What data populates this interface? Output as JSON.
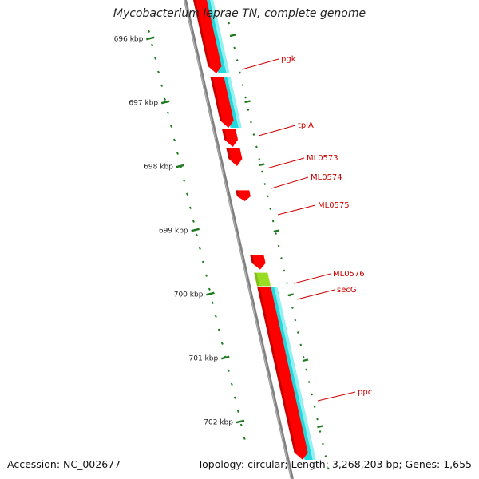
{
  "title": "Mycobacterium leprae TN, complete genome",
  "footer": {
    "accession": "Accession: NC_002677",
    "summary": "Topology: circular; Length: 3,268,203 bp; Genes: 1,655"
  },
  "colors": {
    "gene_fill": "#ff0000",
    "gene_shade": "#b00000",
    "gene_highlight": "#ff7070",
    "cds_track": "#22d8dc",
    "cds_track_light": "#a6f4f4",
    "special_gene": "#99dd22",
    "backbone": "#808080",
    "ruler": "#1f7a1f",
    "label_color": "#cc0000"
  },
  "ruler": {
    "unit": "kbp",
    "ticks": [
      {
        "kbp": 696,
        "label": "696 kbp"
      },
      {
        "kbp": 697,
        "label": "697 kbp"
      },
      {
        "kbp": 698,
        "label": "698 kbp"
      },
      {
        "kbp": 699,
        "label": "699 kbp"
      },
      {
        "kbp": 700,
        "label": "700 kbp"
      },
      {
        "kbp": 701,
        "label": "701 kbp"
      },
      {
        "kbp": 702,
        "label": "702 kbp"
      }
    ]
  },
  "genes": [
    {
      "name": "pgk",
      "start_kbp": 695.35,
      "end_kbp": 696.55,
      "color": "red",
      "cds": true
    },
    {
      "name": "tpiA",
      "start_kbp": 696.6,
      "end_kbp": 697.4,
      "color": "red",
      "cds": true
    },
    {
      "name": "ML0573",
      "start_kbp": 697.42,
      "end_kbp": 697.7,
      "color": "red",
      "cds": false
    },
    {
      "name": "ML0574",
      "start_kbp": 697.72,
      "end_kbp": 698.0,
      "color": "red",
      "cds": false
    },
    {
      "name": "ML0575",
      "start_kbp": 698.38,
      "end_kbp": 698.55,
      "color": "red",
      "cds": false
    },
    {
      "name": "ML0576",
      "start_kbp": 699.4,
      "end_kbp": 699.62,
      "color": "red",
      "cds": false
    },
    {
      "name": "secG",
      "start_kbp": 699.67,
      "end_kbp": 699.88,
      "color": "green",
      "cds": false
    },
    {
      "name": "ppc",
      "start_kbp": 699.9,
      "end_kbp": 702.6,
      "color": "red",
      "cds": true
    }
  ]
}
